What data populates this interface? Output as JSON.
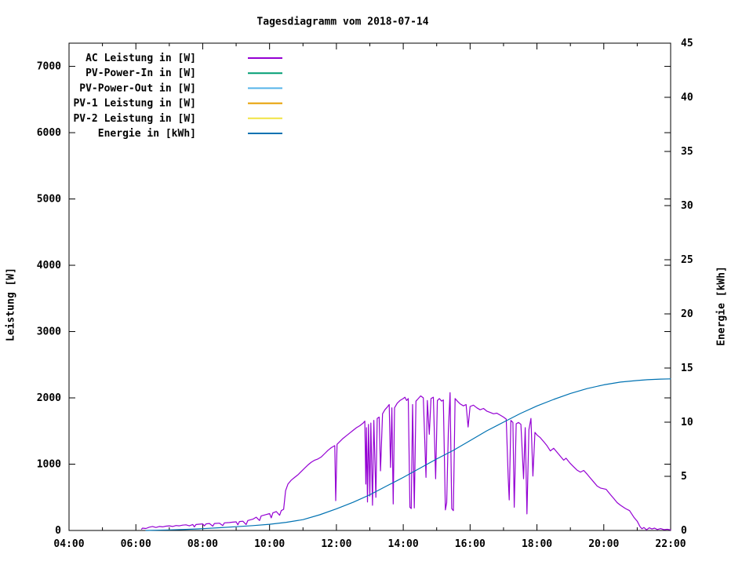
{
  "window": {
    "background": "#ffffff",
    "foreground": "#000000"
  },
  "chart_data": {
    "type": "line",
    "title": "Tagesdiagramm vom 2018-07-14",
    "xlabel": "",
    "ylabel_left": "Leistung [W]",
    "ylabel_right": "Energie [kWh]",
    "grid": false,
    "legend_position": "top-left-inside",
    "x_axis": {
      "unit": "time-of-day",
      "min_hour": 4,
      "max_hour": 22,
      "major_tick_every_hours": 2,
      "minor_tick_every_hours": 1,
      "tick_labels": [
        "04:00",
        "06:00",
        "08:00",
        "10:00",
        "12:00",
        "14:00",
        "16:00",
        "18:00",
        "20:00",
        "22:00"
      ]
    },
    "y_axis_left": {
      "min": 0,
      "max": 7350,
      "ticks": [
        0,
        1000,
        2000,
        3000,
        4000,
        5000,
        6000,
        7000
      ]
    },
    "y_axis_right": {
      "min": 0,
      "max": 45,
      "ticks": [
        0,
        5,
        10,
        15,
        20,
        25,
        30,
        35,
        40,
        45
      ]
    },
    "series": [
      {
        "name": "AC Leistung in [W]",
        "color": "#9400d3",
        "axis": "left",
        "points": [
          [
            6.17,
            20
          ],
          [
            6.2,
            35
          ],
          [
            6.3,
            30
          ],
          [
            6.4,
            50
          ],
          [
            6.5,
            60
          ],
          [
            6.6,
            45
          ],
          [
            6.7,
            60
          ],
          [
            6.8,
            55
          ],
          [
            6.9,
            65
          ],
          [
            7.0,
            70
          ],
          [
            7.1,
            60
          ],
          [
            7.2,
            75
          ],
          [
            7.3,
            70
          ],
          [
            7.4,
            80
          ],
          [
            7.5,
            85
          ],
          [
            7.6,
            70
          ],
          [
            7.7,
            90
          ],
          [
            7.75,
            55
          ],
          [
            7.8,
            90
          ],
          [
            7.9,
            95
          ],
          [
            8.0,
            100
          ],
          [
            8.05,
            70
          ],
          [
            8.1,
            100
          ],
          [
            8.2,
            105
          ],
          [
            8.3,
            65
          ],
          [
            8.35,
            105
          ],
          [
            8.5,
            110
          ],
          [
            8.6,
            75
          ],
          [
            8.65,
            115
          ],
          [
            8.8,
            120
          ],
          [
            8.9,
            125
          ],
          [
            9.0,
            130
          ],
          [
            9.05,
            85
          ],
          [
            9.1,
            135
          ],
          [
            9.2,
            140
          ],
          [
            9.3,
            90
          ],
          [
            9.35,
            150
          ],
          [
            9.5,
            170
          ],
          [
            9.6,
            200
          ],
          [
            9.7,
            150
          ],
          [
            9.75,
            220
          ],
          [
            9.9,
            240
          ],
          [
            10.0,
            255
          ],
          [
            10.05,
            190
          ],
          [
            10.1,
            265
          ],
          [
            10.2,
            285
          ],
          [
            10.3,
            230
          ],
          [
            10.35,
            300
          ],
          [
            10.42,
            320
          ],
          [
            10.48,
            600
          ],
          [
            10.55,
            700
          ],
          [
            10.65,
            760
          ],
          [
            10.75,
            800
          ],
          [
            10.85,
            840
          ],
          [
            10.95,
            890
          ],
          [
            11.05,
            940
          ],
          [
            11.15,
            990
          ],
          [
            11.25,
            1030
          ],
          [
            11.35,
            1060
          ],
          [
            11.45,
            1080
          ],
          [
            11.55,
            1110
          ],
          [
            11.65,
            1160
          ],
          [
            11.75,
            1210
          ],
          [
            11.85,
            1250
          ],
          [
            11.95,
            1280
          ],
          [
            11.98,
            450
          ],
          [
            12.02,
            1300
          ],
          [
            12.1,
            1340
          ],
          [
            12.2,
            1390
          ],
          [
            12.3,
            1430
          ],
          [
            12.4,
            1470
          ],
          [
            12.5,
            1510
          ],
          [
            12.6,
            1550
          ],
          [
            12.7,
            1580
          ],
          [
            12.8,
            1620
          ],
          [
            12.85,
            1650
          ],
          [
            12.88,
            700
          ],
          [
            12.9,
            1550
          ],
          [
            12.93,
            430
          ],
          [
            12.96,
            1600
          ],
          [
            13.0,
            520
          ],
          [
            13.03,
            1620
          ],
          [
            13.08,
            380
          ],
          [
            13.12,
            1660
          ],
          [
            13.18,
            500
          ],
          [
            13.22,
            1690
          ],
          [
            13.28,
            1710
          ],
          [
            13.32,
            900
          ],
          [
            13.38,
            1760
          ],
          [
            13.45,
            1820
          ],
          [
            13.52,
            1860
          ],
          [
            13.58,
            1900
          ],
          [
            13.62,
            950
          ],
          [
            13.66,
            1850
          ],
          [
            13.7,
            400
          ],
          [
            13.74,
            1850
          ],
          [
            13.82,
            1920
          ],
          [
            13.9,
            1960
          ],
          [
            14.0,
            1990
          ],
          [
            14.05,
            2010
          ],
          [
            14.1,
            1960
          ],
          [
            14.15,
            1990
          ],
          [
            14.2,
            350
          ],
          [
            14.24,
            330
          ],
          [
            14.28,
            1900
          ],
          [
            14.33,
            340
          ],
          [
            14.38,
            1950
          ],
          [
            14.45,
            1990
          ],
          [
            14.52,
            2030
          ],
          [
            14.6,
            2000
          ],
          [
            14.68,
            800
          ],
          [
            14.72,
            1960
          ],
          [
            14.78,
            1450
          ],
          [
            14.83,
            1990
          ],
          [
            14.9,
            2010
          ],
          [
            14.97,
            780
          ],
          [
            15.02,
            1960
          ],
          [
            15.08,
            1990
          ],
          [
            15.15,
            1950
          ],
          [
            15.2,
            1970
          ],
          [
            15.26,
            310
          ],
          [
            15.3,
            420
          ],
          [
            15.35,
            1500
          ],
          [
            15.4,
            2080
          ],
          [
            15.45,
            330
          ],
          [
            15.5,
            300
          ],
          [
            15.55,
            1990
          ],
          [
            15.62,
            1950
          ],
          [
            15.7,
            1910
          ],
          [
            15.8,
            1880
          ],
          [
            15.88,
            1900
          ],
          [
            15.94,
            1560
          ],
          [
            16.0,
            1870
          ],
          [
            16.1,
            1890
          ],
          [
            16.2,
            1850
          ],
          [
            16.3,
            1820
          ],
          [
            16.4,
            1840
          ],
          [
            16.5,
            1800
          ],
          [
            16.6,
            1780
          ],
          [
            16.7,
            1760
          ],
          [
            16.8,
            1770
          ],
          [
            16.9,
            1740
          ],
          [
            17.0,
            1710
          ],
          [
            17.08,
            1680
          ],
          [
            17.14,
            800
          ],
          [
            17.17,
            460
          ],
          [
            17.22,
            1660
          ],
          [
            17.28,
            1630
          ],
          [
            17.32,
            350
          ],
          [
            17.38,
            1610
          ],
          [
            17.45,
            1630
          ],
          [
            17.52,
            1600
          ],
          [
            17.6,
            780
          ],
          [
            17.65,
            1550
          ],
          [
            17.7,
            250
          ],
          [
            17.76,
            1520
          ],
          [
            17.82,
            1690
          ],
          [
            17.88,
            820
          ],
          [
            17.94,
            1480
          ],
          [
            18.0,
            1440
          ],
          [
            18.1,
            1400
          ],
          [
            18.2,
            1340
          ],
          [
            18.3,
            1280
          ],
          [
            18.4,
            1200
          ],
          [
            18.5,
            1240
          ],
          [
            18.6,
            1180
          ],
          [
            18.7,
            1120
          ],
          [
            18.8,
            1060
          ],
          [
            18.87,
            1090
          ],
          [
            19.0,
            1010
          ],
          [
            19.1,
            960
          ],
          [
            19.2,
            910
          ],
          [
            19.3,
            880
          ],
          [
            19.4,
            905
          ],
          [
            19.5,
            850
          ],
          [
            19.6,
            790
          ],
          [
            19.7,
            730
          ],
          [
            19.8,
            670
          ],
          [
            19.9,
            640
          ],
          [
            20.07,
            620
          ],
          [
            20.2,
            540
          ],
          [
            20.3,
            480
          ],
          [
            20.4,
            420
          ],
          [
            20.5,
            380
          ],
          [
            20.65,
            330
          ],
          [
            20.77,
            300
          ],
          [
            20.9,
            200
          ],
          [
            21.0,
            140
          ],
          [
            21.08,
            60
          ],
          [
            21.14,
            25
          ],
          [
            21.2,
            45
          ],
          [
            21.28,
            10
          ],
          [
            21.36,
            40
          ],
          [
            21.44,
            22
          ],
          [
            21.52,
            35
          ],
          [
            21.6,
            14
          ],
          [
            21.7,
            28
          ],
          [
            21.8,
            12
          ],
          [
            21.9,
            18
          ],
          [
            22.0,
            8
          ]
        ]
      },
      {
        "name": "PV-Power-In in [W]",
        "color": "#009e73",
        "axis": "left",
        "points": []
      },
      {
        "name": "PV-Power-Out in [W]",
        "color": "#56b4e9",
        "axis": "left",
        "points": []
      },
      {
        "name": "PV-1 Leistung in [W]",
        "color": "#e69f00",
        "axis": "left",
        "points": []
      },
      {
        "name": "PV-2 Leistung in [W]",
        "color": "#f0e442",
        "axis": "left",
        "points": []
      },
      {
        "name": "Energie in [kWh]",
        "color": "#0072b2",
        "axis": "right",
        "points": [
          [
            6.3,
            0
          ],
          [
            7.0,
            0.05
          ],
          [
            7.5,
            0.1
          ],
          [
            8.0,
            0.17
          ],
          [
            8.5,
            0.25
          ],
          [
            9.0,
            0.35
          ],
          [
            9.5,
            0.45
          ],
          [
            10.0,
            0.57
          ],
          [
            10.5,
            0.75
          ],
          [
            11.0,
            1.0
          ],
          [
            11.5,
            1.45
          ],
          [
            12.0,
            2.0
          ],
          [
            12.5,
            2.6
          ],
          [
            13.0,
            3.3
          ],
          [
            13.5,
            4.1
          ],
          [
            14.0,
            4.9
          ],
          [
            14.5,
            5.75
          ],
          [
            15.0,
            6.6
          ],
          [
            15.5,
            7.4
          ],
          [
            16.0,
            8.3
          ],
          [
            16.5,
            9.2
          ],
          [
            17.0,
            10.0
          ],
          [
            17.5,
            10.8
          ],
          [
            18.0,
            11.5
          ],
          [
            18.5,
            12.1
          ],
          [
            19.0,
            12.65
          ],
          [
            19.5,
            13.1
          ],
          [
            20.0,
            13.45
          ],
          [
            20.5,
            13.7
          ],
          [
            21.0,
            13.85
          ],
          [
            21.3,
            13.92
          ],
          [
            21.7,
            13.98
          ],
          [
            22.0,
            14.0
          ]
        ]
      }
    ]
  }
}
